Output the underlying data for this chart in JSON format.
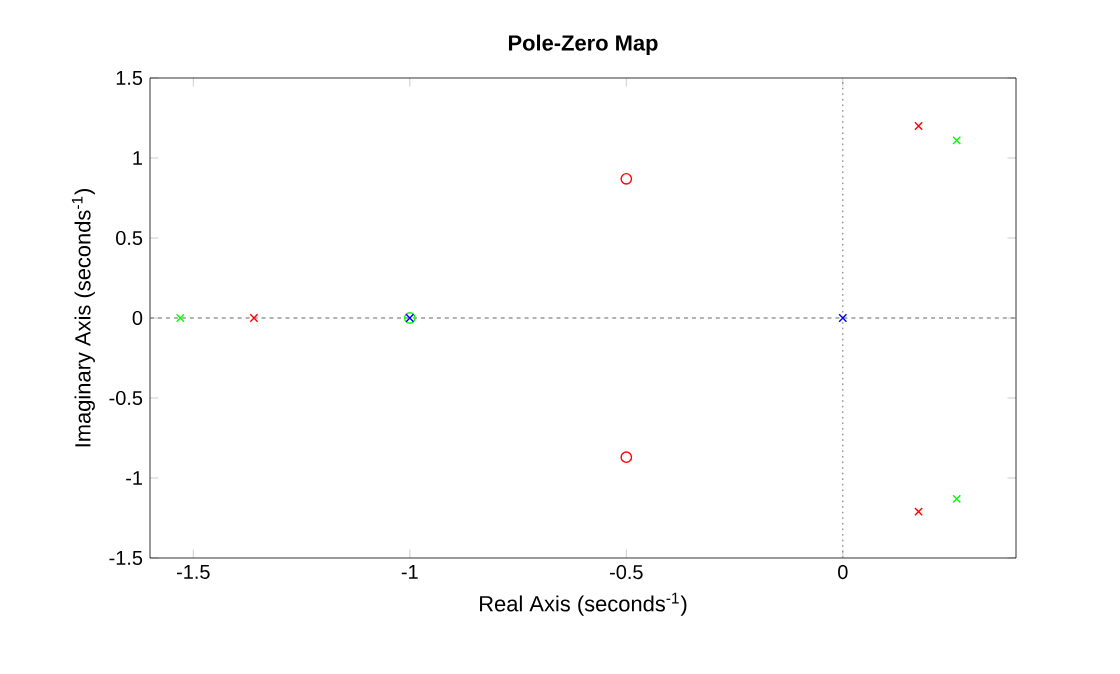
{
  "chart_data": {
    "type": "scatter",
    "title": "Pole-Zero Map",
    "xlabel": "Real Axis (seconds$^{-1}$)",
    "ylabel": "Imaginary Axis (seconds$^{-1}$)",
    "series": [
      {
        "color": "#ff0000",
        "marker": "cross",
        "x": [
          -1.36,
          0.175,
          0.175
        ],
        "values": [
          0,
          1.2,
          -1.21
        ]
      },
      {
        "color": "#ff0000",
        "marker": "circle",
        "x": [
          -0.5,
          -0.5
        ],
        "values": [
          0.87,
          -0.87
        ]
      },
      {
        "color": "#00ff00",
        "marker": "cross",
        "x": [
          -1.53,
          0.263,
          0.263
        ],
        "values": [
          0,
          1.11,
          -1.13
        ]
      },
      {
        "color": "#00ff00",
        "marker": "circle",
        "x": [
          -1
        ],
        "values": [
          0
        ]
      },
      {
        "color": "#0000ff",
        "marker": "cross",
        "x": [
          -1,
          0
        ],
        "values": [
          0,
          0
        ]
      }
    ],
    "xlim": [
      -1.6,
      0.4
    ],
    "ylim": [
      -1.5,
      1.5
    ],
    "xticks": [
      -1.5,
      -1,
      -0.5,
      0
    ],
    "yticks": [
      -1.5,
      -1,
      -0.5,
      0,
      0.5,
      1,
      1.5
    ],
    "ref_lines": [
      {
        "axis": "x",
        "value": 0,
        "line_style": "dotted"
      },
      {
        "axis": "y",
        "value": 0,
        "line_style": "dashed"
      }
    ],
    "grid": false
  }
}
